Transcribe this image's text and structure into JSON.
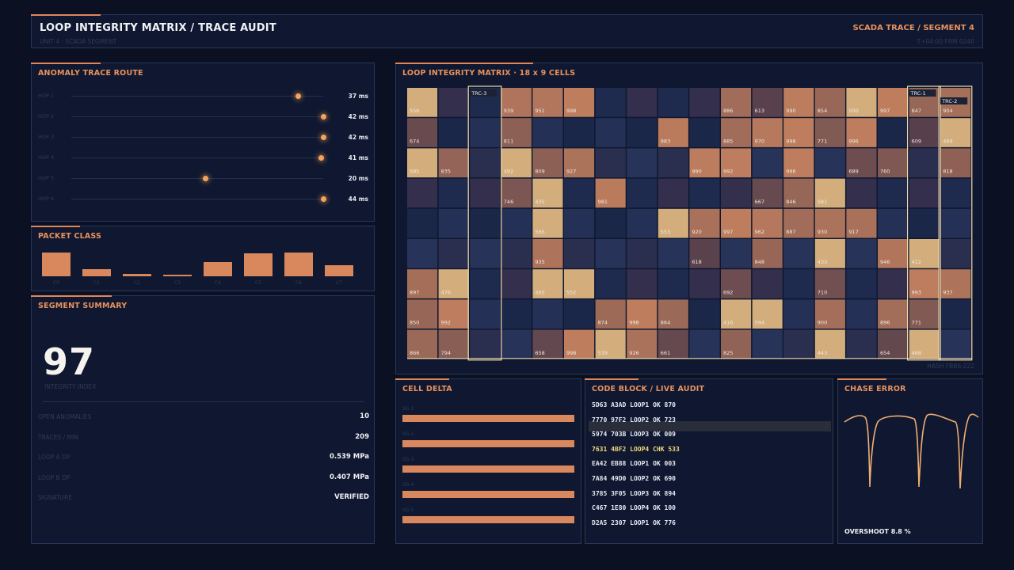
{
  "header": {
    "title": "LOOP INTEGRITY MATRIX / TRACE AUDIT",
    "subtitle": "UNIT 4 · SCADA SEGMENT",
    "right_title": "SCADA TRACE / SEGMENT 4",
    "meta": "T+04:00  FRM 0240"
  },
  "trace_route": {
    "title": "ANOMALY TRACE ROUTE",
    "hops": [
      {
        "label": "HOP 1",
        "value": "37 ms",
        "level": 0.9
      },
      {
        "label": "HOP 2",
        "value": "42 ms",
        "level": 1.0
      },
      {
        "label": "HOP 3",
        "value": "42 ms",
        "level": 1.0
      },
      {
        "label": "HOP 4",
        "value": "41 ms",
        "level": 0.99
      },
      {
        "label": "HOP 5",
        "value": "20 ms",
        "level": 0.53
      },
      {
        "label": "HOP 6",
        "value": "44 ms",
        "level": 1.0
      }
    ]
  },
  "packet_class": {
    "title": "PACKET CLASS",
    "classes": [
      {
        "label": "C0",
        "value": 1.0
      },
      {
        "label": "C1",
        "value": 0.3
      },
      {
        "label": "C2",
        "value": 0.1
      },
      {
        "label": "C3",
        "value": 0.04
      },
      {
        "label": "C4",
        "value": 0.6
      },
      {
        "label": "C5",
        "value": 0.95
      },
      {
        "label": "C6",
        "value": 1.0
      },
      {
        "label": "C7",
        "value": 0.45
      }
    ]
  },
  "summary": {
    "title": "SEGMENT SUMMARY",
    "big_value": "97",
    "big_label": "INTEGRITY INDEX",
    "rows": [
      {
        "label": "OPEN ANOMALIES",
        "value": "10"
      },
      {
        "label": "TRACES / MIN",
        "value": "209"
      },
      {
        "label": "LOOP A DP",
        "value": "0.539 MPa"
      },
      {
        "label": "LOOP B DP",
        "value": "0.407 MPa"
      },
      {
        "label": "SIGNATURE",
        "value": "VERIFIED"
      }
    ]
  },
  "matrix": {
    "title": "LOOP INTEGRITY MATRIX · 18 x 9 CELLS",
    "hash": "HASH FBB6:222",
    "rows": [
      [
        556,
        null,
        null,
        939,
        951,
        998,
        null,
        null,
        null,
        null,
        886,
        613,
        990,
        854,
        500,
        997,
        847,
        904
      ],
      [
        674,
        null,
        null,
        811,
        null,
        null,
        null,
        null,
        983,
        null,
        885,
        970,
        998,
        771,
        996,
        null,
        609,
        469
      ],
      [
        585,
        835,
        null,
        492,
        809,
        927,
        null,
        null,
        null,
        990,
        992,
        null,
        996,
        null,
        689,
        760,
        null,
        818
      ],
      [
        null,
        null,
        null,
        746,
        435,
        null,
        981,
        null,
        null,
        null,
        null,
        667,
        846,
        581,
        null,
        null,
        null,
        null
      ],
      [
        null,
        null,
        null,
        null,
        565,
        null,
        null,
        null,
        553,
        920,
        997,
        962,
        887,
        930,
        917,
        null,
        null,
        null
      ],
      [
        null,
        null,
        null,
        null,
        935,
        null,
        null,
        null,
        null,
        618,
        null,
        848,
        null,
        433,
        null,
        946,
        412,
        null
      ],
      [
        897,
        476,
        null,
        null,
        465,
        552,
        null,
        null,
        null,
        null,
        692,
        null,
        null,
        710,
        null,
        null,
        993,
        937
      ],
      [
        850,
        992,
        null,
        null,
        null,
        null,
        874,
        998,
        864,
        null,
        416,
        594,
        null,
        900,
        null,
        896,
        771,
        null
      ],
      [
        866,
        794,
        null,
        null,
        658,
        998,
        539,
        926,
        661,
        null,
        825,
        null,
        null,
        443,
        null,
        654,
        468,
        null
      ]
    ],
    "traces": [
      {
        "label": "TRC-3",
        "col": 2
      },
      {
        "label": "TRC-1",
        "col": 16
      },
      {
        "label": "TRC-2",
        "col": 17
      }
    ]
  },
  "cell_delta": {
    "title": "CELL DELTA",
    "items": [
      {
        "label": "SG-1",
        "value": 1.0
      },
      {
        "label": "SG-2",
        "value": 1.0
      },
      {
        "label": "SG-3",
        "value": 1.0
      },
      {
        "label": "SG-4",
        "value": 1.0
      },
      {
        "label": "SG-5",
        "value": 1.0
      }
    ]
  },
  "code_block": {
    "title": "CODE BLOCK / LIVE AUDIT",
    "lines": [
      "5D63 A3AD  LOOP1  OK  870",
      "7770 97F2  LOOP2  OK  723",
      "5974 703B  LOOP3  OK  009",
      "7631 4BF2  LOOP4  CHK  533",
      "EA42 EB88  LOOP1  OK  003",
      "7A84 49D0  LOOP2  OK  690",
      "3785 3F05  LOOP3  OK  894",
      "C467 1E80  LOOP4  OK  100",
      "D2A5 2307  LOOP1  OK  776"
    ]
  },
  "chase_error": {
    "title": "CHASE ERROR",
    "overshoot": "OVERSHOOT 8.8 %"
  },
  "colors": {
    "accent": "#e8915e",
    "bar": "#d9875c",
    "highlight_cell": "#d4b27a",
    "trace_outline": "#f3dcae"
  }
}
